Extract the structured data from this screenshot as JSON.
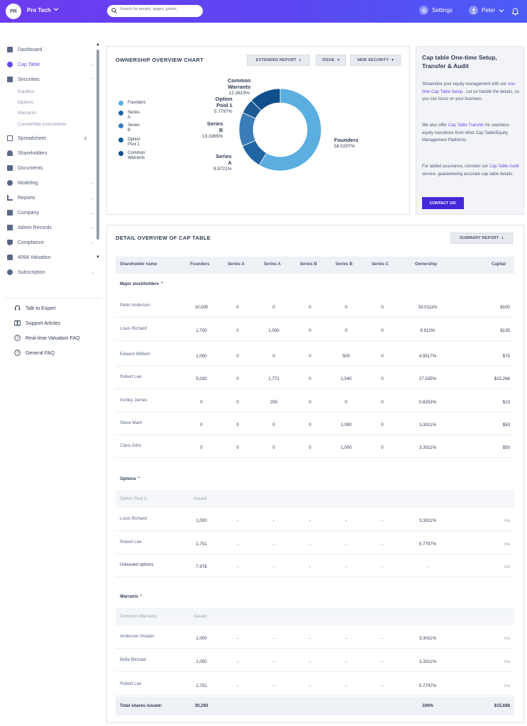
{
  "topbar": {
    "org_initials": "PR",
    "org_name": "Pro Tech",
    "search_placeholder": "Search for people, pages, grants",
    "settings": "Settings",
    "user": "Peter"
  },
  "sidebar": {
    "items": [
      "Dashboard",
      "Cap Table",
      "Securities",
      "Spreadsheet",
      "Shareholders",
      "Documents",
      "Modeling",
      "Reports",
      "Company",
      "Admin Records",
      "Compliance",
      "409A Valuation",
      "Subscription"
    ],
    "sub_items": [
      "Equities",
      "Options",
      "Warrants",
      "Convertible instruments"
    ],
    "help": [
      "Talk to Expert",
      "Support Articles",
      "Real-time Valuation FAQ",
      "General FAQ"
    ]
  },
  "chart_card": {
    "title": "OWNERSHIP OVERVIEW CHART",
    "btn_extended": "EXTENDED REPORT",
    "btn_issue": "ISSUE",
    "btn_new": "NEW SECURITY"
  },
  "chart_data": {
    "type": "pie",
    "title": "OWNERSHIP OVERVIEW CHART",
    "series": [
      {
        "name": "Founders",
        "value": 58.5297,
        "label": "58.5297%",
        "color": "#5aaee0"
      },
      {
        "name": "Series A",
        "value": 9.9721,
        "label": "9.9721%",
        "color": "#1f64a3"
      },
      {
        "name": "Series B",
        "value": 13.3365,
        "label": "13.3365%",
        "color": "#3a7db8"
      },
      {
        "name": "Option Pool 1",
        "value": 5.7797,
        "label": "5.7797%",
        "color": "#1d5a93"
      },
      {
        "name": "Common Warrants",
        "value": 12.3819,
        "label": "12.3819%",
        "color": "#0f4f8a"
      }
    ],
    "legend_names": [
      [
        "Founders"
      ],
      [
        "Series",
        "A"
      ],
      [
        "Series",
        "B"
      ],
      [
        "Option",
        "Pool 1"
      ],
      [
        "Common",
        "Warrants"
      ]
    ],
    "label_names": [
      [
        "Founders"
      ],
      [
        "Series",
        "A"
      ],
      [
        "Series",
        "B"
      ],
      [
        "Option",
        "Pool 1"
      ],
      [
        "Common",
        "Warrants"
      ]
    ],
    "legend_position": "left"
  },
  "info": {
    "title": "Cap table One-time Setup, Transfer & Audit",
    "p1_a": "Streamline your equity management with our ",
    "p1_link": "one-time Cap Table Setup",
    "p1_b": " . Let us handle the details, so you can focus on your business.",
    "p2_a": "We also offer ",
    "p2_link": "Cap Table Transfer",
    "p2_b": " for seamless equity transitions from other Cap Table/Equity Management Platforms.",
    "p3_a": "For added assurance, consider our ",
    "p3_link": "Cap Table Audit",
    "p3_b": " service, guaranteeing accurate cap table details.",
    "button": "CONTACT US!"
  },
  "detail": {
    "title": "DETAIL OVERVIEW OF CAP TABLE",
    "btn_summary": "SUMMARY REPORT",
    "columns": [
      "Shareholder name",
      "Founders",
      "Series A",
      "Series A",
      "Series B",
      "Series B",
      "Series C",
      "Ownership",
      "Capital"
    ],
    "major_label": "Major stockholders",
    "major": [
      [
        "Peter Anderson",
        "10,000",
        "0",
        "0",
        "0",
        "0",
        "0",
        "33.0111%",
        "$100"
      ],
      [
        "Louis Richard",
        "1,700",
        "0",
        "1,000",
        "0",
        "0",
        "0",
        "8.913%",
        "$135"
      ],
      [
        "Edward William",
        "1,000",
        "0",
        "0",
        "0",
        "500",
        "0",
        "4.9517%",
        "$75"
      ],
      [
        "Robert Lee",
        "5,030",
        "0",
        "1,771",
        "0",
        "1,540",
        "0",
        "27.535%",
        "$15,266"
      ],
      [
        "Ashley James",
        "0",
        "0",
        "250",
        "0",
        "0",
        "0",
        "0.8253%",
        "$13"
      ],
      [
        "Steve Mark",
        "0",
        "0",
        "0",
        "0",
        "1,000",
        "0",
        "3.3011%",
        "$50"
      ],
      [
        "Clara John",
        "0",
        "0",
        "0",
        "0",
        "1,000",
        "0",
        "3.3011%",
        "$50"
      ]
    ],
    "options_label": "Options",
    "options_sub": "Option Pool 1:",
    "options_issued": "Issued",
    "options": [
      [
        "Louis Richard",
        "1,000",
        "-",
        "-",
        "-",
        "-",
        "-",
        "3.3011%",
        "n/a"
      ],
      [
        "Robert Lee",
        "1,751",
        "-",
        "-",
        "-",
        "-",
        "-",
        "5.7797%",
        "n/a"
      ],
      [
        "Unissued options",
        "7,978",
        "-",
        "-",
        "-",
        "-",
        "-",
        "-",
        "n/a"
      ]
    ],
    "warrants_label": "Warrants",
    "warrants_sub": "Common Warrants:",
    "warrants_issued": "Issued",
    "warrants": [
      [
        "Anderson Hooper",
        "1,000",
        "-",
        "-",
        "-",
        "-",
        "-",
        "3.3011%",
        "n/a"
      ],
      [
        "Bella Michael",
        "1,000",
        "-",
        "-",
        "-",
        "-",
        "-",
        "3.3011%",
        "n/a"
      ],
      [
        "Robert Lee",
        "1,751",
        "-",
        "-",
        "-",
        "-",
        "-",
        "5.7797%",
        "n/a"
      ]
    ],
    "total": [
      "Total shares issued:",
      "30,293",
      "100%",
      "$15,688"
    ]
  }
}
